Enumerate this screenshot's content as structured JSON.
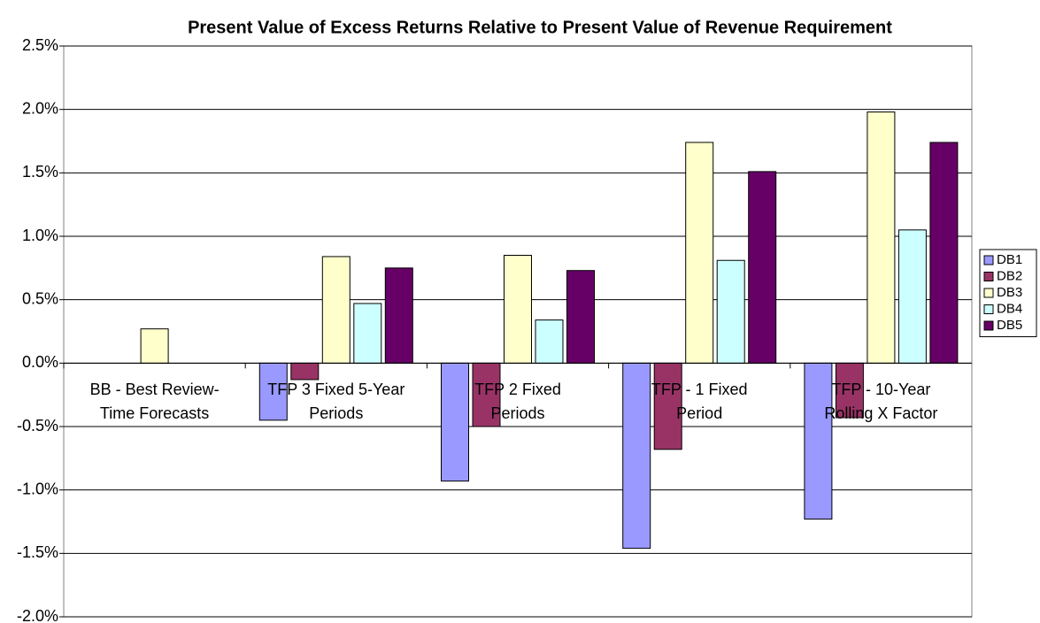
{
  "chart_data": {
    "type": "bar",
    "title": "Present Value of Excess Returns Relative to Present Value of Revenue Requirement",
    "categories": [
      "BB - Best Review-Time Forecasts",
      "TFP 3 Fixed 5-Year Periods",
      "TFP 2 Fixed Periods",
      "TFP - 1 Fixed Period",
      "TFP - 10-Year Rolling X Factor"
    ],
    "series": [
      {
        "name": "DB1",
        "color": "#9999ff",
        "values": [
          0,
          -0.45,
          -0.93,
          -1.46,
          -1.23
        ]
      },
      {
        "name": "DB2",
        "color": "#993366",
        "values": [
          0,
          -0.13,
          -0.5,
          -0.68,
          -0.43
        ]
      },
      {
        "name": "DB3",
        "color": "#ffffcc",
        "values": [
          0.27,
          0.84,
          0.85,
          1.74,
          1.98
        ]
      },
      {
        "name": "DB4",
        "color": "#ccffff",
        "values": [
          0,
          0.47,
          0.34,
          0.81,
          1.05
        ]
      },
      {
        "name": "DB5",
        "color": "#660066",
        "values": [
          0,
          0.75,
          0.73,
          1.51,
          1.74
        ]
      }
    ],
    "ylim": [
      -2.0,
      2.5
    ],
    "yticks": [
      {
        "value": -2.0,
        "label": "-2.0%"
      },
      {
        "value": -1.5,
        "label": "-1.5%"
      },
      {
        "value": -1.0,
        "label": "-1.0%"
      },
      {
        "value": -0.5,
        "label": "-0.5%"
      },
      {
        "value": 0.0,
        "label": "0.0%"
      },
      {
        "value": 0.5,
        "label": "0.5%"
      },
      {
        "value": 1.0,
        "label": "1.0%"
      },
      {
        "value": 1.5,
        "label": "1.5%"
      },
      {
        "value": 2.0,
        "label": "2.0%"
      },
      {
        "value": 2.5,
        "label": "2.5%"
      }
    ],
    "grid": true,
    "legend": "right"
  }
}
